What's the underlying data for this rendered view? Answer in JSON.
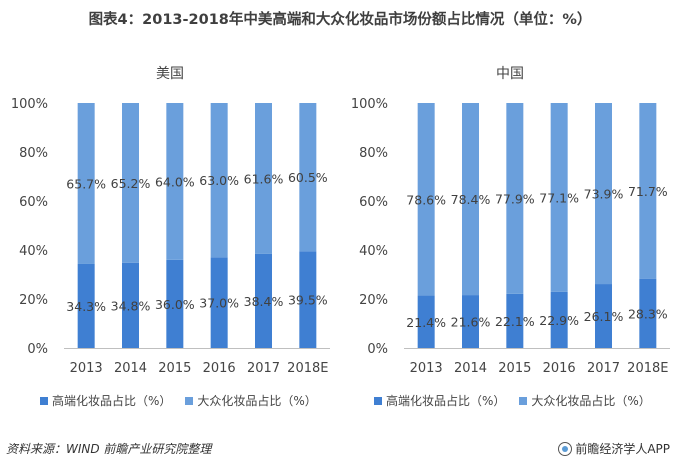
{
  "title": "图表4：2013-2018年中美高端和大众化妆品市场份额占比情况（单位：%）",
  "colors": {
    "series1": "#6a9fdc",
    "series2": "#3f7fd2"
  },
  "chart_data": [
    {
      "type": "bar",
      "stacked": true,
      "title": "美国",
      "categories": [
        "2013",
        "2014",
        "2015",
        "2016",
        "2017",
        "2018E"
      ],
      "yticks": [
        "0%",
        "20%",
        "40%",
        "60%",
        "80%",
        "100%"
      ],
      "ylim": [
        0,
        100
      ],
      "series": [
        {
          "name": "高端化妆品占比（%）",
          "values": [
            34.3,
            34.8,
            36.0,
            37.0,
            38.4,
            39.5
          ],
          "labels": [
            "34.3%",
            "34.8%",
            "36.0%",
            "37.0%",
            "38.4%",
            "39.5%"
          ]
        },
        {
          "name": "大众化妆品占比（%）",
          "values": [
            65.7,
            65.2,
            64.0,
            63.0,
            61.6,
            60.5
          ],
          "labels": [
            "65.7%",
            "65.2%",
            "64.0%",
            "63.0%",
            "61.6%",
            "60.5%"
          ]
        }
      ]
    },
    {
      "type": "bar",
      "stacked": true,
      "title": "中国",
      "categories": [
        "2013",
        "2014",
        "2015",
        "2016",
        "2017",
        "2018E"
      ],
      "yticks": [
        "0%",
        "20%",
        "40%",
        "60%",
        "80%",
        "100%"
      ],
      "ylim": [
        0,
        100
      ],
      "series": [
        {
          "name": "高端化妆品占比（%）",
          "values": [
            21.4,
            21.6,
            22.1,
            22.9,
            26.1,
            28.3
          ],
          "labels": [
            "21.4%",
            "21.6%",
            "22.1%",
            "22.9%",
            "26.1%",
            "28.3%"
          ]
        },
        {
          "name": "大众化妆品占比（%）",
          "values": [
            78.6,
            78.4,
            77.9,
            77.1,
            73.9,
            71.7
          ],
          "labels": [
            "78.6%",
            "78.4%",
            "77.9%",
            "77.1%",
            "73.9%",
            "71.7%"
          ]
        }
      ]
    }
  ],
  "legend": [
    {
      "label": "高端化妆品占比（%）"
    },
    {
      "label": "大众化妆品占比（%）"
    }
  ],
  "source": "资料来源：WIND 前瞻产业研究院整理",
  "brand": "前瞻经济学人APP"
}
